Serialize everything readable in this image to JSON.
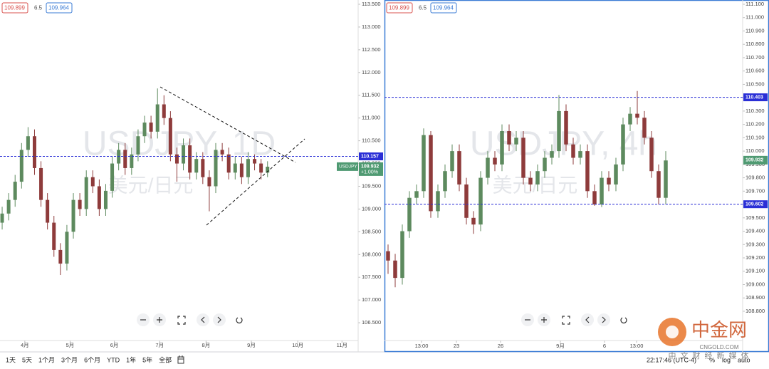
{
  "chart_data": [
    {
      "type": "candlestick",
      "title": "USDJPY, 1D",
      "subtitle": "美元/日元",
      "header_values": [
        109.899,
        6.5,
        109.964
      ],
      "x": [
        0,
        3,
        6,
        9,
        12,
        15,
        18,
        21,
        24,
        27,
        30,
        33,
        36,
        39,
        42,
        45,
        48,
        51,
        54,
        57,
        60,
        63,
        66,
        69,
        72,
        75,
        78,
        81,
        84,
        87,
        90,
        93,
        96,
        99,
        102,
        105,
        108,
        111,
        114,
        117,
        120,
        123
      ],
      "open": [
        108.7,
        108.9,
        109.2,
        109.6,
        110.3,
        110.6,
        109.9,
        109.2,
        108.7,
        108.1,
        107.8,
        108.5,
        109.2,
        109.0,
        109.7,
        109.5,
        109.0,
        109.4,
        110.0,
        110.3,
        109.9,
        110.2,
        110.6,
        110.9,
        110.7,
        111.3,
        111.0,
        110.2,
        110.0,
        110.4,
        109.8,
        110.1,
        109.7,
        109.5,
        110.3,
        110.2,
        109.8,
        110.0,
        109.7,
        110.1,
        110.0,
        109.8
      ],
      "high": [
        109.05,
        109.35,
        109.75,
        110.45,
        110.8,
        110.75,
        110.05,
        109.35,
        108.85,
        108.25,
        108.65,
        109.35,
        109.35,
        109.85,
        109.85,
        109.65,
        109.55,
        110.15,
        110.45,
        110.45,
        110.35,
        110.75,
        111.05,
        111.05,
        111.65,
        111.5,
        111.15,
        110.35,
        110.55,
        110.55,
        110.25,
        110.25,
        109.85,
        110.45,
        110.45,
        110.35,
        110.15,
        110.15,
        110.25,
        110.2,
        110.1,
        110.05
      ],
      "low": [
        108.55,
        108.75,
        109.05,
        109.45,
        110.15,
        109.75,
        109.05,
        108.55,
        107.95,
        107.55,
        107.65,
        108.35,
        108.85,
        108.85,
        109.35,
        108.85,
        108.85,
        109.25,
        109.85,
        109.75,
        109.75,
        110.05,
        110.45,
        110.55,
        110.55,
        110.85,
        110.05,
        109.6,
        109.85,
        109.65,
        109.65,
        109.55,
        108.95,
        109.35,
        110.05,
        109.65,
        109.65,
        109.55,
        109.55,
        109.85,
        109.65,
        109.7
      ],
      "close": [
        108.9,
        109.2,
        109.6,
        110.3,
        110.6,
        109.9,
        109.2,
        108.7,
        108.1,
        107.8,
        108.5,
        109.2,
        109.0,
        109.7,
        109.5,
        109.0,
        109.4,
        110.0,
        110.3,
        109.9,
        110.2,
        110.6,
        110.9,
        110.7,
        111.3,
        111.0,
        110.2,
        110.0,
        110.4,
        109.8,
        110.1,
        109.7,
        109.5,
        110.3,
        110.2,
        109.8,
        110.0,
        109.7,
        110.1,
        110.0,
        109.8,
        109.93
      ],
      "up_color": "#5d8a5e",
      "down_color": "#8e3b3b",
      "xlim": [
        -1,
        165
      ],
      "xticks": [
        {
          "value": 10.5,
          "label": "4月"
        },
        {
          "value": 31.5,
          "label": "5月"
        },
        {
          "value": 52,
          "label": "6月"
        },
        {
          "value": 73,
          "label": "7月"
        },
        {
          "value": 94.5,
          "label": "8月"
        },
        {
          "value": 115.5,
          "label": "9月"
        },
        {
          "value": 137,
          "label": "10月"
        },
        {
          "value": 157.5,
          "label": "11月"
        }
      ],
      "ylim": [
        106.11,
        113.594
      ],
      "yticks": [
        {
          "value": 113.5,
          "label": "113.500"
        },
        {
          "value": 113,
          "label": "113.000"
        },
        {
          "value": 112.5,
          "label": "112.500"
        },
        {
          "value": 112,
          "label": "112.000"
        },
        {
          "value": 111.5,
          "label": "111.500"
        },
        {
          "value": 111,
          "label": "111.000"
        },
        {
          "value": 110.5,
          "label": "110.500"
        },
        {
          "value": 110,
          "label": "110.000"
        },
        {
          "value": 109.5,
          "label": "109.500"
        },
        {
          "value": 109,
          "label": "109.000"
        },
        {
          "value": 108.5,
          "label": "108.500"
        },
        {
          "value": 108,
          "label": "108.000"
        },
        {
          "value": 107.5,
          "label": "107.500"
        },
        {
          "value": 107,
          "label": "107.000"
        },
        {
          "value": 106.5,
          "label": "106.500"
        }
      ],
      "price_lines": [
        {
          "value": 110.157,
          "color": "#2a2fd6"
        }
      ],
      "last": {
        "name": "USDJPY",
        "value": 109.932,
        "change": "+1.00%",
        "color": "#4f9a72"
      }
    },
    {
      "type": "candlestick",
      "title": "USDJPY, 4h",
      "subtitle": "美元/日元",
      "header_values": [
        109.899,
        6.5,
        109.964
      ],
      "x": [
        0,
        1,
        2,
        3,
        4,
        5,
        6,
        7,
        8,
        9,
        10,
        11,
        12,
        13,
        14,
        15,
        16,
        17,
        18,
        19,
        20,
        21,
        22,
        23,
        24,
        25,
        26,
        27,
        28,
        29,
        30,
        31,
        32,
        33,
        34,
        35,
        36,
        37,
        38,
        39
      ],
      "open": [
        109.25,
        109.18,
        109.05,
        109.4,
        109.65,
        109.7,
        110.12,
        109.55,
        109.7,
        109.85,
        110.0,
        109.75,
        109.5,
        109.45,
        109.8,
        109.95,
        109.9,
        110.15,
        110.05,
        110.1,
        109.8,
        109.75,
        109.85,
        109.95,
        110.0,
        110.3,
        110.05,
        109.95,
        110.0,
        109.7,
        109.6,
        109.8,
        109.75,
        109.9,
        110.2,
        110.28,
        110.25,
        110.1,
        109.85,
        109.65
      ],
      "high": [
        109.3,
        109.23,
        109.45,
        109.7,
        109.75,
        110.17,
        110.15,
        109.75,
        109.9,
        110.05,
        110.05,
        109.8,
        109.55,
        109.85,
        110.0,
        110.0,
        110.2,
        110.2,
        110.15,
        110.15,
        109.85,
        109.9,
        110.0,
        110.05,
        110.42,
        110.35,
        110.1,
        110.05,
        110.05,
        109.75,
        109.85,
        109.85,
        109.95,
        110.25,
        110.33,
        110.45,
        110.3,
        110.15,
        109.9,
        110.0
      ],
      "low": [
        109.08,
        108.98,
        109.0,
        109.35,
        109.6,
        109.65,
        109.5,
        109.5,
        109.65,
        109.8,
        109.7,
        109.45,
        109.38,
        109.4,
        109.75,
        109.85,
        109.85,
        110.0,
        110.0,
        109.75,
        109.7,
        109.7,
        109.8,
        109.9,
        109.95,
        110.0,
        109.9,
        109.9,
        109.65,
        109.59,
        109.58,
        109.7,
        109.7,
        109.85,
        110.15,
        110.2,
        110.05,
        109.8,
        109.6,
        109.6
      ],
      "close": [
        109.18,
        109.05,
        109.4,
        109.65,
        109.7,
        110.12,
        109.55,
        109.7,
        109.85,
        110.0,
        109.75,
        109.5,
        109.45,
        109.8,
        109.95,
        109.9,
        110.15,
        110.05,
        110.1,
        109.8,
        109.75,
        109.85,
        109.95,
        110.0,
        110.3,
        110.05,
        109.95,
        110.0,
        109.7,
        109.6,
        109.8,
        109.75,
        109.9,
        110.2,
        110.28,
        110.25,
        110.1,
        109.85,
        109.65,
        109.93
      ],
      "up_color": "#5d8a5e",
      "down_color": "#8e3b3b",
      "xlim": [
        -0.5,
        49.8
      ],
      "xticks": [
        {
          "value": 4.7,
          "label": "13:00"
        },
        {
          "value": 9.6,
          "label": "23"
        },
        {
          "value": 15.8,
          "label": "26"
        },
        {
          "value": 24.2,
          "label": "9月"
        },
        {
          "value": 30.4,
          "label": "6"
        },
        {
          "value": 34.9,
          "label": "13:00"
        }
      ],
      "ylim": [
        108.581,
        111.132
      ],
      "yticks": [
        {
          "value": 111.1,
          "label": "111.100"
        },
        {
          "value": 111,
          "label": "111.000"
        },
        {
          "value": 110.9,
          "label": "110.900"
        },
        {
          "value": 110.8,
          "label": "110.800"
        },
        {
          "value": 110.7,
          "label": "110.700"
        },
        {
          "value": 110.6,
          "label": "110.600"
        },
        {
          "value": 110.5,
          "label": "110.500"
        },
        {
          "value": 110.4,
          "label": "110.400"
        },
        {
          "value": 110.3,
          "label": "110.300"
        },
        {
          "value": 110.2,
          "label": "110.200"
        },
        {
          "value": 110.1,
          "label": "110.100"
        },
        {
          "value": 110,
          "label": "110.000"
        },
        {
          "value": 109.9,
          "label": "109.900"
        },
        {
          "value": 109.8,
          "label": "109.800"
        },
        {
          "value": 109.7,
          "label": "109.700"
        },
        {
          "value": 109.6,
          "label": "109.600"
        },
        {
          "value": 109.5,
          "label": "109.500"
        },
        {
          "value": 109.4,
          "label": "109.400"
        },
        {
          "value": 109.3,
          "label": "109.300"
        },
        {
          "value": 109.2,
          "label": "109.200"
        },
        {
          "value": 109.1,
          "label": "109.100"
        },
        {
          "value": 109,
          "label": "109.000"
        },
        {
          "value": 108.9,
          "label": "108.900"
        },
        {
          "value": 108.8,
          "label": "108.800"
        }
      ],
      "price_lines": [
        {
          "value": 110.403,
          "color": "#2a2fd6"
        },
        {
          "value": 109.602,
          "color": "#2a2fd6"
        }
      ],
      "last": {
        "value": 109.932,
        "color": "#4f9a72"
      }
    }
  ],
  "toolbar": {
    "periods": [
      "1天",
      "5天",
      "1个月",
      "3个月",
      "6个月",
      "YTD",
      "1年",
      "5年",
      "全部"
    ],
    "time": "22:17:46 (UTC-4)",
    "toggles": [
      "%",
      "log",
      "auto"
    ]
  },
  "logo": {
    "name": "中金网",
    "domain": "CNGOLD.COM",
    "slogan": "中文财经新媒体"
  }
}
